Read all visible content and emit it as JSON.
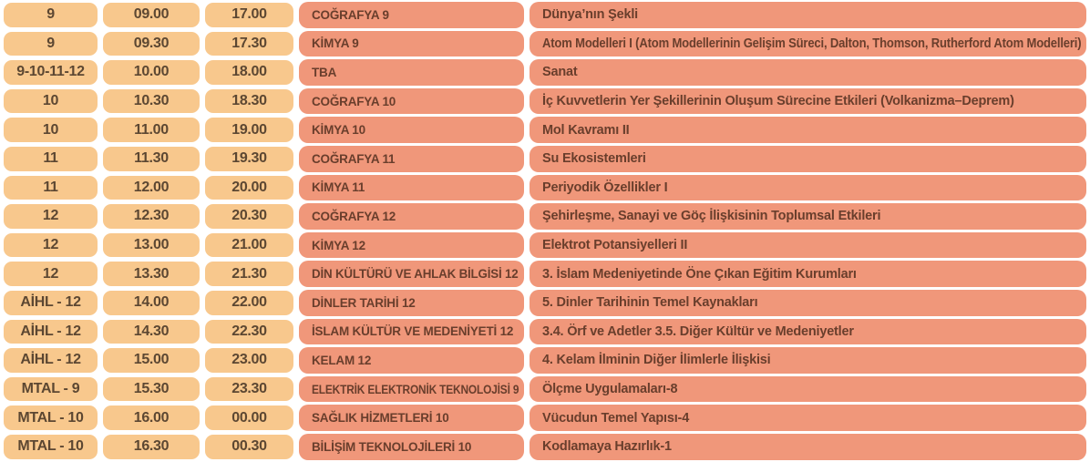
{
  "colors": {
    "light_cell": "#f8c88d",
    "salmon_cell": "#f0977a",
    "light_text": "#5c4732",
    "salmon_text": "#693e2c",
    "background": "#ffffff"
  },
  "table": {
    "rows": [
      {
        "grade": "9",
        "time1": "09.00",
        "time2": "17.00",
        "course": "COĞRAFYA 9",
        "topic": "Dünya’nın Şekli"
      },
      {
        "grade": "9",
        "time1": "09.30",
        "time2": "17.30",
        "course": "KİMYA 9",
        "topic": "Atom Modelleri I (Atom Modellerinin Gelişim Süreci, Dalton, Thomson, Rutherford Atom Modelleri)"
      },
      {
        "grade": "9-10-11-12",
        "time1": "10.00",
        "time2": "18.00",
        "course": "TBA",
        "topic": "Sanat"
      },
      {
        "grade": "10",
        "time1": "10.30",
        "time2": "18.30",
        "course": "COĞRAFYA 10",
        "topic": "İç Kuvvetlerin Yer Şekillerinin Oluşum Sürecine Etkileri (Volkanizma–Deprem)"
      },
      {
        "grade": "10",
        "time1": "11.00",
        "time2": "19.00",
        "course": "KİMYA 10",
        "topic": "Mol Kavramı II"
      },
      {
        "grade": "11",
        "time1": "11.30",
        "time2": "19.30",
        "course": "COĞRAFYA 11",
        "topic": "Su Ekosistemleri"
      },
      {
        "grade": "11",
        "time1": "12.00",
        "time2": "20.00",
        "course": "KİMYA 11",
        "topic": "Periyodik Özellikler I"
      },
      {
        "grade": "12",
        "time1": "12.30",
        "time2": "20.30",
        "course": "COĞRAFYA 12",
        "topic": "Şehirleşme, Sanayi ve Göç İlişkisinin Toplumsal Etkileri"
      },
      {
        "grade": "12",
        "time1": "13.00",
        "time2": "21.00",
        "course": "KİMYA 12",
        "topic": "Elektrot Potansiyelleri II"
      },
      {
        "grade": "12",
        "time1": "13.30",
        "time2": "21.30",
        "course": "DİN KÜLTÜRÜ VE AHLAK BİLGİSİ 12",
        "topic": "3. İslam Medeniyetinde Öne Çıkan Eğitim Kurumları"
      },
      {
        "grade": "AİHL - 12",
        "time1": "14.00",
        "time2": "22.00",
        "course": "DİNLER TARİHİ 12",
        "topic": "5. Dinler Tarihinin Temel Kaynakları"
      },
      {
        "grade": "AİHL - 12",
        "time1": "14.30",
        "time2": "22.30",
        "course": "İSLAM KÜLTÜR VE MEDENİYETİ 12",
        "topic": "3.4. Örf ve Adetler  3.5. Diğer Kültür ve Medeniyetler"
      },
      {
        "grade": "AİHL - 12",
        "time1": "15.00",
        "time2": "23.00",
        "course": "KELAM 12",
        "topic": "4. Kelam İlminin Diğer İlimlerle İlişkisi"
      },
      {
        "grade": "MTAL - 9",
        "time1": "15.30",
        "time2": "23.30",
        "course": "ELEKTRİK ELEKTRONİK TEKNOLOJİSİ 9",
        "topic": "Ölçme Uygulamaları-8"
      },
      {
        "grade": "MTAL - 10",
        "time1": "16.00",
        "time2": "00.00",
        "course": "SAĞLIK HİZMETLERİ 10",
        "topic": "Vücudun Temel Yapısı-4"
      },
      {
        "grade": "MTAL - 10",
        "time1": "16.30",
        "time2": "00.30",
        "course": "BİLİŞİM TEKNOLOJİLERİ 10",
        "topic": "Kodlamaya Hazırlık-1"
      }
    ]
  }
}
